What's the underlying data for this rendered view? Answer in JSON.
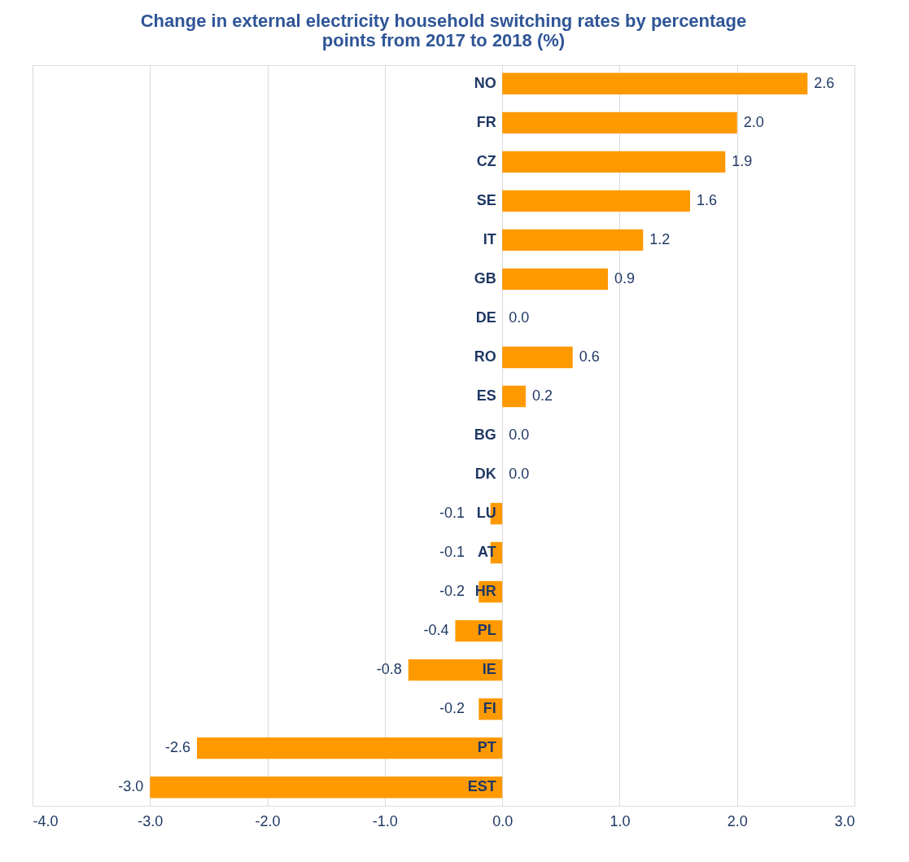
{
  "chart_data": {
    "type": "bar",
    "orientation": "horizontal",
    "title": [
      "Change in external electricity household switching rates by percentage",
      "points from 2017 to 2018 (%)"
    ],
    "categories": [
      "NO",
      "FR",
      "CZ",
      "SE",
      "IT",
      "GB",
      "DE",
      "RO",
      "ES",
      "BG",
      "DK",
      "LU",
      "AT",
      "HR",
      "PL",
      "IE",
      "FI",
      "PT",
      "EST"
    ],
    "values": [
      2.6,
      2.0,
      1.9,
      1.6,
      1.2,
      0.9,
      0.0,
      0.6,
      0.2,
      0.0,
      0.0,
      -0.1,
      -0.1,
      -0.2,
      -0.4,
      -0.8,
      -0.2,
      -2.6,
      -3.0
    ],
    "color": "#ff9900",
    "xlim": [
      -4.0,
      3.0
    ],
    "xticks": [
      {
        "value": -4,
        "label": "-4.0"
      },
      {
        "value": -3,
        "label": "-3.0"
      },
      {
        "value": -2,
        "label": "-2.0"
      },
      {
        "value": -1,
        "label": "-1.0"
      },
      {
        "value": 0,
        "label": "0.0"
      },
      {
        "value": 1,
        "label": "1.0"
      },
      {
        "value": 2,
        "label": "2.0"
      },
      {
        "value": 3,
        "label": "3.0"
      }
    ],
    "value_labels": [
      "2.6",
      "2.0",
      "1.9",
      "1.6",
      "1.2",
      "0.9",
      "0.0",
      "0.6",
      "0.2",
      "0.0",
      "0.0",
      "-0.1",
      "-0.1",
      "-0.2",
      "-0.4",
      "-0.8",
      "-0.2",
      "-2.6",
      "-3.0"
    ],
    "grid": "x"
  }
}
